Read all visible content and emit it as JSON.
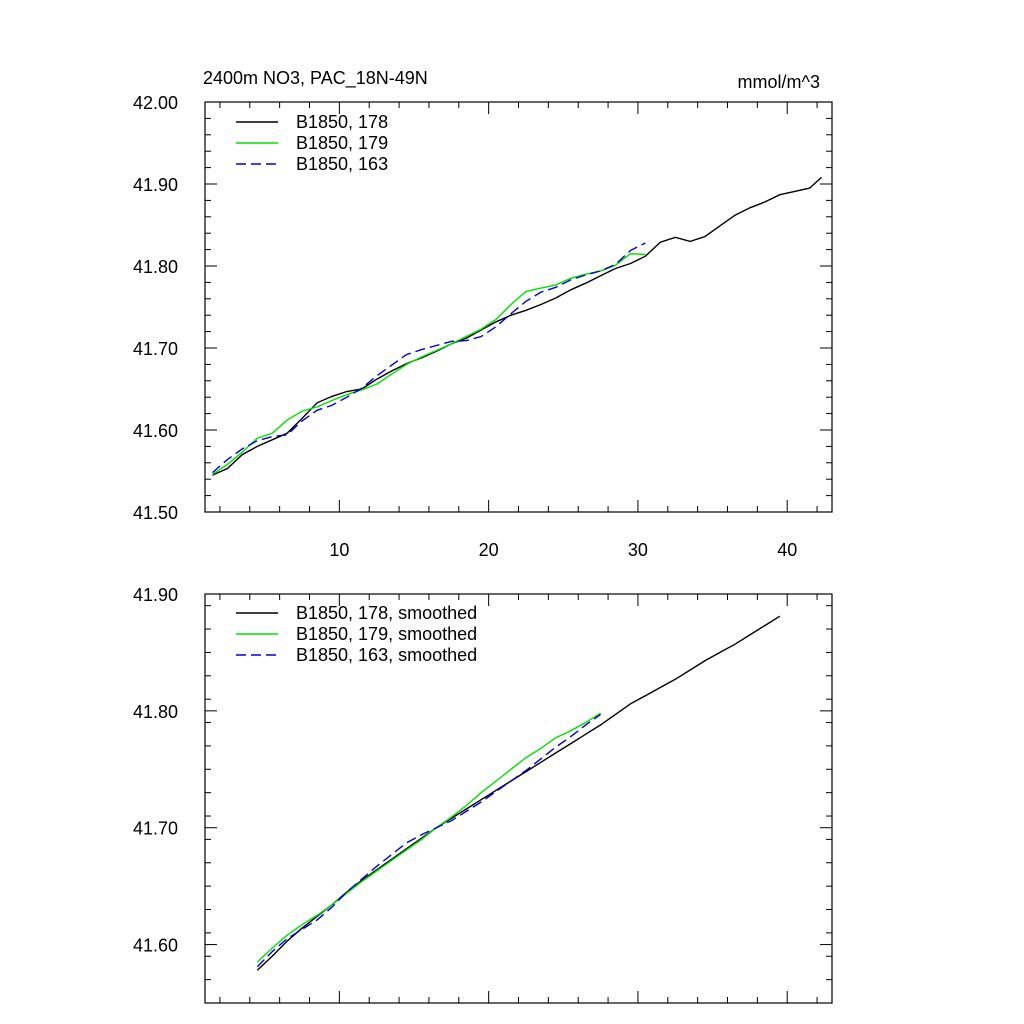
{
  "chart_data": [
    {
      "type": "line",
      "title": "2400m NO3, PAC_18N-49N",
      "units": "mmol/m^3",
      "xlabel": "",
      "ylabel": "",
      "xlim": [
        1,
        43
      ],
      "ylim": [
        41.5,
        42.0
      ],
      "x_ticks": [
        10,
        20,
        30,
        40
      ],
      "x_tick_labels": [
        "10",
        "20",
        "30",
        "40"
      ],
      "y_ticks": [
        41.5,
        41.6,
        41.7,
        41.8,
        41.9,
        42.0
      ],
      "y_tick_labels": [
        "41.50",
        "41.60",
        "41.70",
        "41.80",
        "41.90",
        "42.00"
      ],
      "grid": false,
      "legend": "top-left",
      "series": [
        {
          "name": "B1850, 178",
          "color": "#000000",
          "dash": "solid",
          "x": [
            1.5,
            2.5,
            3.5,
            4.5,
            5.5,
            6.5,
            7.5,
            8.5,
            9.5,
            10.5,
            11.5,
            12.5,
            13.5,
            14.5,
            15.5,
            16.5,
            17.5,
            18.5,
            19.5,
            20.5,
            21.5,
            22.5,
            23.5,
            24.5,
            25.5,
            26.5,
            27.5,
            28.5,
            29.5,
            30.5,
            31.5,
            32.5,
            33.5,
            34.5,
            35.5,
            36.5,
            37.5,
            38.5,
            39.5,
            40.5,
            41.5,
            42.3
          ],
          "values": [
            41.545,
            41.553,
            41.57,
            41.58,
            41.588,
            41.596,
            41.614,
            41.633,
            41.641,
            41.647,
            41.65,
            41.662,
            41.672,
            41.681,
            41.688,
            41.696,
            41.705,
            41.712,
            41.722,
            41.732,
            41.74,
            41.746,
            41.753,
            41.761,
            41.771,
            41.779,
            41.788,
            41.797,
            41.803,
            41.812,
            41.829,
            41.835,
            41.83,
            41.836,
            41.849,
            41.862,
            41.871,
            41.878,
            41.887,
            41.891,
            41.895,
            41.908
          ]
        },
        {
          "name": "B1850, 179",
          "color": "#00e000",
          "dash": "solid",
          "x": [
            1.5,
            2.5,
            3.5,
            4.5,
            5.5,
            6.5,
            7.5,
            8.5,
            9.5,
            10.5,
            11.5,
            12.5,
            13.5,
            14.5,
            15.5,
            16.5,
            17.5,
            18.5,
            19.5,
            20.5,
            21.5,
            22.5,
            23.5,
            24.5,
            25.5,
            26.5,
            27.5,
            28.5,
            29.5,
            30.5
          ],
          "values": [
            41.546,
            41.558,
            41.573,
            41.59,
            41.596,
            41.612,
            41.623,
            41.628,
            41.636,
            41.643,
            41.649,
            41.656,
            41.668,
            41.68,
            41.689,
            41.697,
            41.705,
            41.714,
            41.723,
            41.735,
            41.753,
            41.769,
            41.773,
            41.777,
            41.785,
            41.79,
            41.794,
            41.801,
            41.815,
            41.814
          ]
        },
        {
          "name": "B1850, 163",
          "color": "#0000d0",
          "dash": "dashed",
          "x": [
            1.5,
            2.5,
            3.5,
            4.5,
            5.5,
            6.5,
            7.5,
            8.5,
            9.5,
            10.5,
            11.5,
            12.5,
            13.5,
            14.5,
            15.5,
            16.5,
            17.5,
            18.5,
            19.5,
            20.5,
            21.5,
            22.5,
            23.5,
            24.5,
            25.5,
            26.5,
            27.5,
            28.5,
            29.5,
            30.5
          ],
          "values": [
            41.548,
            41.564,
            41.577,
            41.587,
            41.592,
            41.594,
            41.611,
            41.624,
            41.63,
            41.64,
            41.651,
            41.666,
            41.679,
            41.692,
            41.698,
            41.703,
            41.708,
            41.709,
            41.714,
            41.726,
            41.742,
            41.757,
            41.768,
            41.774,
            41.783,
            41.789,
            41.794,
            41.802,
            41.819,
            41.828
          ]
        }
      ]
    },
    {
      "type": "line",
      "title": "",
      "xlabel": "",
      "ylabel": "",
      "xlim": [
        1,
        43
      ],
      "ylim": [
        41.55,
        41.9
      ],
      "x_ticks": [
        10,
        20,
        30,
        40
      ],
      "x_tick_labels": [
        "",
        "",
        "",
        ""
      ],
      "y_ticks": [
        41.6,
        41.7,
        41.8,
        41.9
      ],
      "y_tick_labels": [
        "41.60",
        "41.70",
        "41.80",
        "41.90"
      ],
      "grid": false,
      "legend": "top-left",
      "series": [
        {
          "name": "B1850, 178, smoothed",
          "color": "#000000",
          "dash": "solid",
          "x": [
            4.5,
            5.5,
            6.5,
            7.5,
            8.5,
            9.5,
            10.5,
            11.5,
            12.5,
            13.5,
            14.5,
            15.5,
            16.5,
            17.5,
            18.5,
            19.5,
            20.5,
            21.5,
            22.5,
            23.5,
            24.5,
            25.5,
            26.5,
            27.5,
            28.5,
            29.5,
            30.5,
            31.5,
            32.5,
            33.5,
            34.5,
            35.5,
            36.5,
            37.5,
            38.5,
            39.5
          ],
          "values": [
            41.578,
            41.59,
            41.603,
            41.614,
            41.624,
            41.634,
            41.645,
            41.655,
            41.664,
            41.673,
            41.682,
            41.691,
            41.7,
            41.708,
            41.716,
            41.724,
            41.732,
            41.74,
            41.748,
            41.756,
            41.764,
            41.772,
            41.78,
            41.788,
            41.797,
            41.806,
            41.813,
            41.82,
            41.827,
            41.835,
            41.843,
            41.85,
            41.857,
            41.865,
            41.873,
            41.881
          ]
        },
        {
          "name": "B1850, 179, smoothed",
          "color": "#00e000",
          "dash": "solid",
          "x": [
            4.5,
            5.5,
            6.5,
            7.5,
            8.5,
            9.5,
            10.5,
            11.5,
            12.5,
            13.5,
            14.5,
            15.5,
            16.5,
            17.5,
            18.5,
            19.5,
            20.5,
            21.5,
            22.5,
            23.5,
            24.5,
            25.5,
            26.5,
            27.5
          ],
          "values": [
            41.585,
            41.597,
            41.608,
            41.617,
            41.625,
            41.634,
            41.644,
            41.654,
            41.663,
            41.672,
            41.681,
            41.69,
            41.7,
            41.709,
            41.719,
            41.73,
            41.74,
            41.75,
            41.76,
            41.768,
            41.777,
            41.783,
            41.79,
            41.798
          ]
        },
        {
          "name": "B1850, 163, smoothed",
          "color": "#0000d0",
          "dash": "dashed",
          "x": [
            4.5,
            5.5,
            6.5,
            7.5,
            8.5,
            9.5,
            10.5,
            11.5,
            12.5,
            13.5,
            14.5,
            15.5,
            16.5,
            17.5,
            18.5,
            19.5,
            20.5,
            21.5,
            22.5,
            23.5,
            24.5,
            25.5,
            26.5,
            27.5
          ],
          "values": [
            41.581,
            41.594,
            41.605,
            41.613,
            41.621,
            41.632,
            41.645,
            41.656,
            41.667,
            41.677,
            41.687,
            41.694,
            41.7,
            41.706,
            41.714,
            41.722,
            41.731,
            41.74,
            41.749,
            41.759,
            41.769,
            41.778,
            41.788,
            41.797
          ]
        }
      ]
    }
  ]
}
